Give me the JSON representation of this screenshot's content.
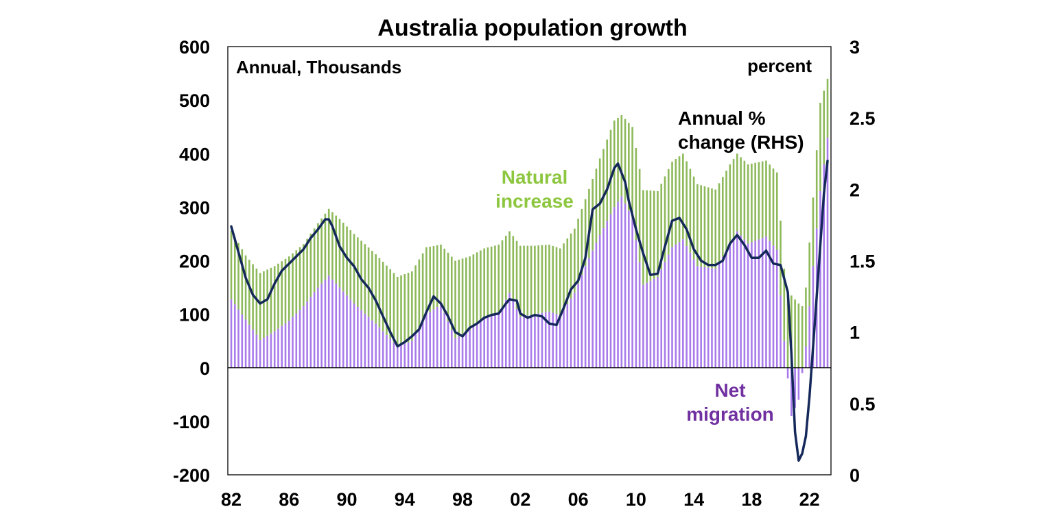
{
  "chart_data": {
    "type": "bar",
    "title": "Australia population growth",
    "left_axis_label": "Annual, Thousands",
    "right_axis_label": "percent",
    "ylim_left": [
      -200,
      600
    ],
    "ylim_right": [
      0,
      3
    ],
    "left_ticks": [
      "600",
      "500",
      "400",
      "300",
      "200",
      "100",
      "0",
      "-100",
      "-200"
    ],
    "right_ticks": [
      "3",
      "2.5",
      "2",
      "1.5",
      "1",
      "0.5",
      "0"
    ],
    "x_ticks": [
      "82",
      "86",
      "90",
      "94",
      "98",
      "02",
      "06",
      "10",
      "14",
      "18",
      "22"
    ],
    "x_range": [
      1982,
      2023.25
    ],
    "stacked": true,
    "colors": {
      "natural": "#8DB95A",
      "migration": "#A97BEA",
      "line": "#14285A",
      "axis": "#000000",
      "natural_label": "#8DC63F",
      "migration_label": "#7030A0"
    },
    "annotations": {
      "natural": [
        "Natural",
        "increase"
      ],
      "migration": [
        "Net",
        "migration"
      ],
      "line": [
        "Annual %",
        "change (RHS)"
      ]
    },
    "series": [
      {
        "name": "Net migration",
        "type": "bar",
        "axis": "left",
        "keypoints": [
          [
            1982,
            128
          ],
          [
            1983,
            90
          ],
          [
            1984,
            52
          ],
          [
            1985,
            68
          ],
          [
            1986,
            88
          ],
          [
            1987,
            115
          ],
          [
            1988,
            150
          ],
          [
            1988.75,
            172
          ],
          [
            1989.5,
            150
          ],
          [
            1990.5,
            120
          ],
          [
            1992,
            82
          ],
          [
            1993.5,
            40
          ],
          [
            1994.5,
            50
          ],
          [
            1995.5,
            100
          ],
          [
            1996.5,
            118
          ],
          [
            1997.5,
            55
          ],
          [
            1998.5,
            70
          ],
          [
            1999.5,
            95
          ],
          [
            2000.5,
            100
          ],
          [
            2001.25,
            140
          ],
          [
            2002,
            95
          ],
          [
            2003,
            100
          ],
          [
            2004,
            105
          ],
          [
            2004.75,
            98
          ],
          [
            2005.75,
            140
          ],
          [
            2006.5,
            190
          ],
          [
            2007.5,
            248
          ],
          [
            2008.5,
            300
          ],
          [
            2009,
            320
          ],
          [
            2009.75,
            280
          ],
          [
            2010.5,
            155
          ],
          [
            2011.5,
            170
          ],
          [
            2012.5,
            225
          ],
          [
            2013.25,
            240
          ],
          [
            2014.25,
            190
          ],
          [
            2015.5,
            185
          ],
          [
            2016.5,
            230
          ],
          [
            2017,
            255
          ],
          [
            2017.75,
            232
          ],
          [
            2019,
            245
          ],
          [
            2019.75,
            220
          ],
          [
            2020.25,
            50
          ],
          [
            2020.75,
            -90
          ],
          [
            2021.25,
            -60
          ],
          [
            2021.75,
            40
          ],
          [
            2022.25,
            190
          ],
          [
            2022.75,
            330
          ],
          [
            2023.25,
            430
          ]
        ]
      },
      {
        "name": "Natural increase",
        "type": "bar",
        "axis": "left",
        "keypoints": [
          [
            1982,
            128
          ],
          [
            1983,
            120
          ],
          [
            1984,
            125
          ],
          [
            1985,
            122
          ],
          [
            1986,
            120
          ],
          [
            1987,
            116
          ],
          [
            1988,
            120
          ],
          [
            1988.75,
            125
          ],
          [
            1989.5,
            128
          ],
          [
            1990.5,
            130
          ],
          [
            1992,
            130
          ],
          [
            1993.5,
            130
          ],
          [
            1994.5,
            130
          ],
          [
            1995.5,
            125
          ],
          [
            1996.5,
            112
          ],
          [
            1997.5,
            145
          ],
          [
            1998.5,
            138
          ],
          [
            1999.5,
            128
          ],
          [
            2000.5,
            130
          ],
          [
            2001.25,
            115
          ],
          [
            2002,
            133
          ],
          [
            2003,
            128
          ],
          [
            2004,
            125
          ],
          [
            2004.75,
            125
          ],
          [
            2005.75,
            120
          ],
          [
            2006.5,
            125
          ],
          [
            2007.5,
            143
          ],
          [
            2008.5,
            162
          ],
          [
            2009,
            152
          ],
          [
            2009.75,
            170
          ],
          [
            2010.5,
            177
          ],
          [
            2011.5,
            160
          ],
          [
            2012.5,
            160
          ],
          [
            2013.25,
            160
          ],
          [
            2014.25,
            153
          ],
          [
            2015.5,
            148
          ],
          [
            2016.5,
            150
          ],
          [
            2017,
            145
          ],
          [
            2017.75,
            148
          ],
          [
            2019,
            142
          ],
          [
            2019.75,
            145
          ],
          [
            2020.25,
            135
          ],
          [
            2020.75,
            135
          ],
          [
            2021.25,
            120
          ],
          [
            2021.75,
            110
          ],
          [
            2022.25,
            128
          ],
          [
            2022.75,
            165
          ],
          [
            2023.25,
            110
          ]
        ]
      },
      {
        "name": "Annual % change",
        "type": "line",
        "axis": "right",
        "keypoints": [
          [
            1982,
            1.74
          ],
          [
            1982.5,
            1.56
          ],
          [
            1983,
            1.38
          ],
          [
            1983.5,
            1.26
          ],
          [
            1984,
            1.2
          ],
          [
            1984.5,
            1.23
          ],
          [
            1985,
            1.34
          ],
          [
            1985.5,
            1.43
          ],
          [
            1986,
            1.48
          ],
          [
            1986.5,
            1.53
          ],
          [
            1987,
            1.58
          ],
          [
            1987.5,
            1.66
          ],
          [
            1988,
            1.72
          ],
          [
            1988.5,
            1.79
          ],
          [
            1988.75,
            1.79
          ],
          [
            1989,
            1.74
          ],
          [
            1989.5,
            1.6
          ],
          [
            1990,
            1.52
          ],
          [
            1990.5,
            1.46
          ],
          [
            1991,
            1.37
          ],
          [
            1991.5,
            1.31
          ],
          [
            1992,
            1.22
          ],
          [
            1992.5,
            1.11
          ],
          [
            1993,
            1.0
          ],
          [
            1993.5,
            0.9
          ],
          [
            1994,
            0.93
          ],
          [
            1994.5,
            0.97
          ],
          [
            1995,
            1.02
          ],
          [
            1995.5,
            1.14
          ],
          [
            1996,
            1.25
          ],
          [
            1996.5,
            1.2
          ],
          [
            1997,
            1.11
          ],
          [
            1997.5,
            1.0
          ],
          [
            1998,
            0.97
          ],
          [
            1998.5,
            1.03
          ],
          [
            1999,
            1.06
          ],
          [
            1999.5,
            1.1
          ],
          [
            2000,
            1.12
          ],
          [
            2000.5,
            1.13
          ],
          [
            2001,
            1.2
          ],
          [
            2001.25,
            1.23
          ],
          [
            2001.75,
            1.22
          ],
          [
            2002,
            1.13
          ],
          [
            2002.5,
            1.1
          ],
          [
            2003,
            1.12
          ],
          [
            2003.5,
            1.11
          ],
          [
            2004,
            1.06
          ],
          [
            2004.5,
            1.05
          ],
          [
            2005,
            1.17
          ],
          [
            2005.5,
            1.3
          ],
          [
            2006,
            1.36
          ],
          [
            2006.5,
            1.52
          ],
          [
            2007,
            1.86
          ],
          [
            2007.5,
            1.9
          ],
          [
            2008,
            2.0
          ],
          [
            2008.5,
            2.15
          ],
          [
            2008.75,
            2.18
          ],
          [
            2009.25,
            2.05
          ],
          [
            2009.5,
            1.92
          ],
          [
            2010,
            1.72
          ],
          [
            2010.5,
            1.55
          ],
          [
            2011,
            1.4
          ],
          [
            2011.5,
            1.41
          ],
          [
            2012,
            1.6
          ],
          [
            2012.5,
            1.78
          ],
          [
            2013,
            1.8
          ],
          [
            2013.5,
            1.72
          ],
          [
            2014,
            1.58
          ],
          [
            2014.5,
            1.5
          ],
          [
            2015,
            1.47
          ],
          [
            2015.5,
            1.47
          ],
          [
            2016,
            1.5
          ],
          [
            2016.5,
            1.62
          ],
          [
            2017,
            1.68
          ],
          [
            2017.5,
            1.61
          ],
          [
            2018,
            1.52
          ],
          [
            2018.5,
            1.52
          ],
          [
            2019,
            1.57
          ],
          [
            2019.5,
            1.48
          ],
          [
            2020,
            1.47
          ],
          [
            2020.5,
            1.28
          ],
          [
            2020.75,
            0.85
          ],
          [
            2021,
            0.3
          ],
          [
            2021.25,
            0.1
          ],
          [
            2021.5,
            0.15
          ],
          [
            2021.75,
            0.27
          ],
          [
            2022,
            0.55
          ],
          [
            2022.5,
            1.25
          ],
          [
            2023,
            1.97
          ],
          [
            2023.25,
            2.2
          ]
        ]
      }
    ]
  }
}
